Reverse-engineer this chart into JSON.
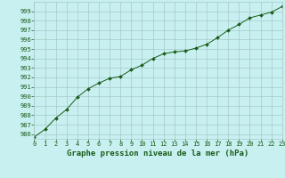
{
  "x": [
    0,
    1,
    2,
    3,
    4,
    5,
    6,
    7,
    8,
    9,
    10,
    11,
    12,
    13,
    14,
    15,
    16,
    17,
    18,
    19,
    20,
    21,
    22,
    23
  ],
  "y": [
    985.7,
    986.5,
    987.7,
    988.6,
    989.9,
    990.8,
    991.4,
    991.9,
    992.1,
    992.8,
    993.3,
    994.0,
    994.5,
    994.7,
    994.8,
    995.1,
    995.5,
    996.2,
    997.0,
    997.6,
    998.3,
    998.6,
    998.9,
    999.5
  ],
  "xlim": [
    0,
    23
  ],
  "ylim": [
    985.5,
    1000.0
  ],
  "yticks": [
    986,
    987,
    988,
    989,
    990,
    991,
    992,
    993,
    994,
    995,
    996,
    997,
    998,
    999
  ],
  "xticks": [
    0,
    1,
    2,
    3,
    4,
    5,
    6,
    7,
    8,
    9,
    10,
    11,
    12,
    13,
    14,
    15,
    16,
    17,
    18,
    19,
    20,
    21,
    22,
    23
  ],
  "xlabel": "Graphe pression niveau de la mer (hPa)",
  "line_color": "#1a5c1a",
  "marker": "D",
  "marker_size": 2.0,
  "bg_color": "#c8f0f0",
  "grid_color": "#a8c8c8",
  "tick_label_fontsize": 5.0,
  "xlabel_fontsize": 6.5
}
